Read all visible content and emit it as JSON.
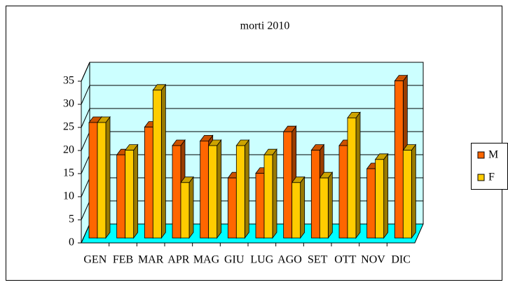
{
  "chart_data": {
    "type": "bar",
    "title": "morti 2010",
    "categories": [
      "GEN",
      "FEB",
      "MAR",
      "APR",
      "MAG",
      "GIU",
      "LUG",
      "AGO",
      "SET",
      "OTT",
      "NOV",
      "DIC"
    ],
    "series": [
      {
        "name": "M",
        "color": "#ff6600",
        "values": [
          25,
          18,
          24,
          20,
          21,
          13,
          14,
          23,
          19,
          20,
          15,
          34
        ]
      },
      {
        "name": "F",
        "color": "#ffcc00",
        "values": [
          25,
          19,
          32,
          12,
          20,
          20,
          18,
          12,
          13,
          26,
          17,
          19
        ]
      }
    ],
    "ylim": [
      0,
      35
    ],
    "yticks": [
      0,
      5,
      10,
      15,
      20,
      25,
      30,
      35
    ],
    "grid": true,
    "legend": "right"
  }
}
